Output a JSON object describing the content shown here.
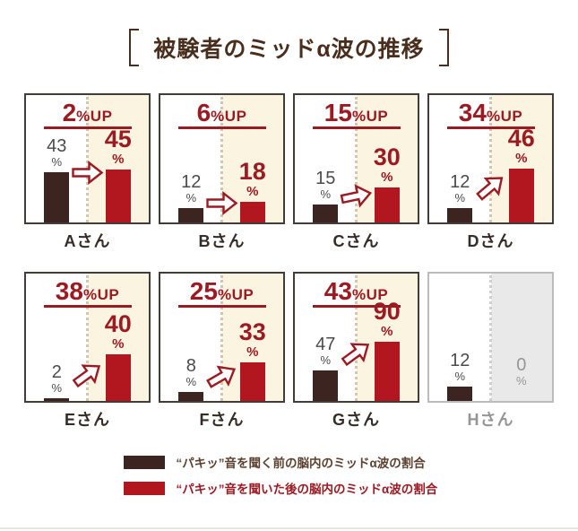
{
  "title": {
    "text": "被験者のミッドα波の推移"
  },
  "chart_data": {
    "type": "bar",
    "title": "被験者のミッドα波の推移",
    "unit": "%",
    "ylim": [
      0,
      100
    ],
    "percent_sign": "%",
    "up_suffix": "%UP",
    "legend": [
      {
        "name": "before",
        "label": "“パキッ”音を聞く前の脳内のミッドα波の割合",
        "color": "#3c2421"
      },
      {
        "name": "after",
        "label": "“パキッ”音を聞いた後の脳内のミッドα波の割合",
        "color": "#b2161f"
      }
    ],
    "panels": [
      {
        "name": "Aさん",
        "up": "2",
        "before": 43,
        "after": 45,
        "disabled": false,
        "arrow": {
          "angle": 0,
          "bottom": 42
        }
      },
      {
        "name": "Bさん",
        "up": "6",
        "before": 12,
        "after": 18,
        "disabled": false,
        "arrow": {
          "angle": 0,
          "bottom": 8
        }
      },
      {
        "name": "Cさん",
        "up": "15",
        "before": 15,
        "after": 30,
        "disabled": false,
        "arrow": {
          "angle": -12,
          "bottom": 16
        }
      },
      {
        "name": "Dさん",
        "up": "34",
        "before": 12,
        "after": 46,
        "disabled": false,
        "arrow": {
          "angle": -40,
          "bottom": 26
        }
      },
      {
        "name": "Eさん",
        "up": "38",
        "before": 2,
        "after": 40,
        "disabled": false,
        "arrow": {
          "angle": -36,
          "bottom": 16
        }
      },
      {
        "name": "Fさん",
        "up": "25",
        "before": 8,
        "after": 33,
        "disabled": false,
        "arrow": {
          "angle": -30,
          "bottom": 14
        }
      },
      {
        "name": "Gさん",
        "up": "43",
        "before": 47,
        "after": 90,
        "disabled": false,
        "arrow": {
          "angle": -36,
          "bottom": 40
        }
      },
      {
        "name": "Hさん",
        "up": null,
        "before": 12,
        "after": 0,
        "disabled": true,
        "arrow": null
      }
    ]
  },
  "colors": {
    "title": "#4a2e1d",
    "panel_border": "#423b37",
    "before_bar": "#3c2421",
    "after_bar": "#b2161f",
    "red_text": "#9c1a22",
    "gray_value_text": "#4b4b4b",
    "right_half_background": "#fbf4e1",
    "disabled_background": "#e9e9e9",
    "disabled_text": "#969696",
    "legend_before_text": "#5d4130"
  }
}
